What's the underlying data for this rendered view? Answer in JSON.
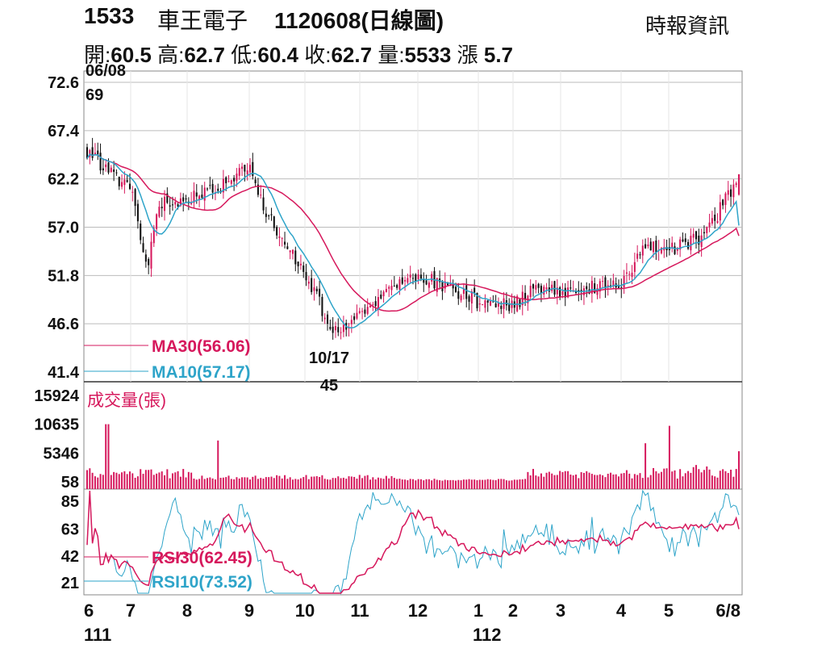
{
  "header": {
    "code": "1533",
    "name": "車王電子",
    "date_title": "1120608(日線圖)",
    "source": "時報資訊",
    "ohlc": {
      "open_label": "開:",
      "open": "60.5",
      "high_label": "高:",
      "high": "62.7",
      "low_label": "低:",
      "low": "60.4",
      "close_label": "收:",
      "close": "62.7",
      "volume_label": "量:",
      "volume": "5533",
      "change_label": "漲",
      "change": "5.7"
    }
  },
  "colors": {
    "up": "#d6185c",
    "down": "#111111",
    "ma30": "#d6185c",
    "ma10": "#2ea4c9",
    "volume": "#d6185c",
    "rsi30": "#d6185c",
    "rsi10": "#2ea4c9",
    "grid": "#bbbbbb"
  },
  "chart_data": [
    {
      "type": "candlestick",
      "panel": "price",
      "y_ticks": [
        "72.6",
        "67.4",
        "62.2",
        "57.0",
        "51.8",
        "46.6",
        "41.4"
      ],
      "ylim": [
        41.4,
        72.6
      ],
      "x_ticks": [
        "6",
        "7",
        "8",
        "9",
        "10",
        "11",
        "12",
        "1",
        "2",
        "3",
        "4",
        "5",
        "6/8"
      ],
      "x_year_labels": [
        "111",
        "112"
      ],
      "annotations": [
        {
          "date": "06/08",
          "value": "69"
        },
        {
          "date": "10/17",
          "value": "45"
        }
      ],
      "legend": [
        {
          "label": "MA30(56.06)",
          "color": "#d6185c"
        },
        {
          "label": "MA10(57.17)",
          "color": "#2ea4c9"
        }
      ],
      "close_anchors_by_month": [
        {
          "x": "6",
          "close": 65.5
        },
        {
          "x": "7",
          "close": 61.0
        },
        {
          "x": "7.3",
          "close": 53.0
        },
        {
          "x": "7.5",
          "close": 59.5
        },
        {
          "x": "8",
          "close": 60.0
        },
        {
          "x": "8.5",
          "close": 61.0
        },
        {
          "x": "9",
          "close": 63.5
        },
        {
          "x": "9.3",
          "close": 58.5
        },
        {
          "x": "10",
          "close": 52.0
        },
        {
          "x": "10.5",
          "close": 46.0
        },
        {
          "x": "11",
          "close": 47.5
        },
        {
          "x": "11.5",
          "close": 50.5
        },
        {
          "x": "12",
          "close": 52.0
        },
        {
          "x": "12.5",
          "close": 50.5
        },
        {
          "x": "1",
          "close": 49.0
        },
        {
          "x": "2",
          "close": 48.5
        },
        {
          "x": "2.5",
          "close": 50.5
        },
        {
          "x": "3",
          "close": 50.0
        },
        {
          "x": "3.5",
          "close": 50.5
        },
        {
          "x": "4",
          "close": 50.5
        },
        {
          "x": "4.5",
          "close": 55.0
        },
        {
          "x": "5",
          "close": 54.5
        },
        {
          "x": "5.5",
          "close": 56.0
        },
        {
          "x": "6/8",
          "close": 62.7
        }
      ],
      "ma30_last": 56.06,
      "ma10_last": 57.17
    },
    {
      "type": "bar",
      "panel": "volume",
      "label": "成交量(張)",
      "y_ticks": [
        "15924",
        "10635",
        "5346",
        "58"
      ],
      "ylim": [
        58,
        15924
      ],
      "notable_bars": [
        {
          "x": "6",
          "value": 10600
        },
        {
          "x": "6.5",
          "value": 10500
        },
        {
          "x": "8.5",
          "value": 7500
        },
        {
          "x": "4.5",
          "value": 7000
        },
        {
          "x": "5",
          "value": 10200
        },
        {
          "x": "6/8",
          "value": 5533
        }
      ]
    },
    {
      "type": "line",
      "panel": "rsi",
      "y_ticks": [
        "85",
        "63",
        "42",
        "21"
      ],
      "legend": [
        {
          "label": "RSI30(62.45)",
          "color": "#d6185c"
        },
        {
          "label": "RSI10(73.52)",
          "color": "#2ea4c9"
        }
      ],
      "rsi30_last": 62.45,
      "rsi10_last": 73.52
    }
  ]
}
